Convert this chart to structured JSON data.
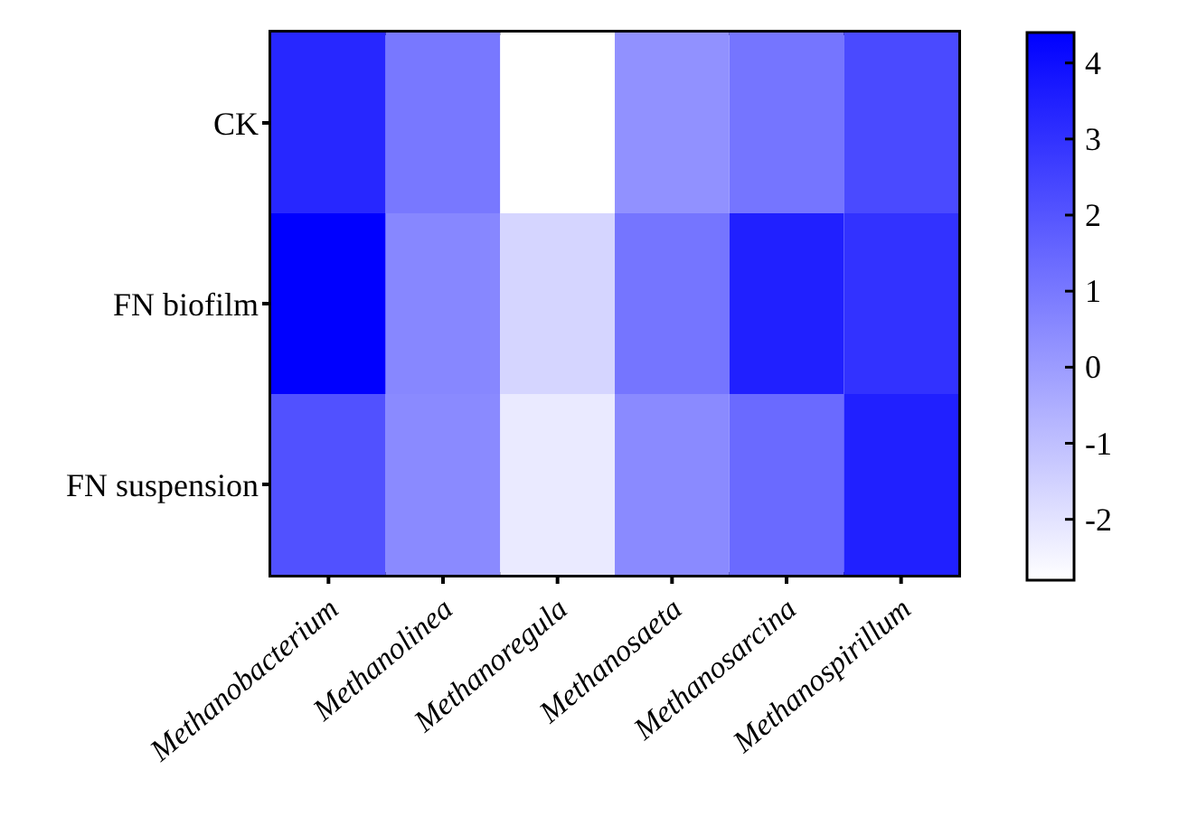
{
  "chart_data": {
    "type": "heatmap",
    "categories": [
      "Methanobacterium",
      "Methanolinea",
      "Methanoregula",
      "Methanosaeta",
      "Methanosarcina",
      "Methanospirillum"
    ],
    "y_categories": [
      "CK",
      "FN biofilm",
      "FN suspension"
    ],
    "cells": [
      [
        3.3,
        1.0,
        -2.8,
        0.3,
        1.1,
        2.3
      ],
      [
        4.4,
        0.6,
        -1.6,
        1.1,
        3.5,
        3.0
      ],
      [
        2.1,
        0.5,
        -2.2,
        0.5,
        1.4,
        3.5
      ]
    ],
    "clim": [
      -2.8,
      4.4
    ],
    "cticks": [
      -2,
      -1,
      0,
      1,
      2,
      3,
      4
    ]
  }
}
